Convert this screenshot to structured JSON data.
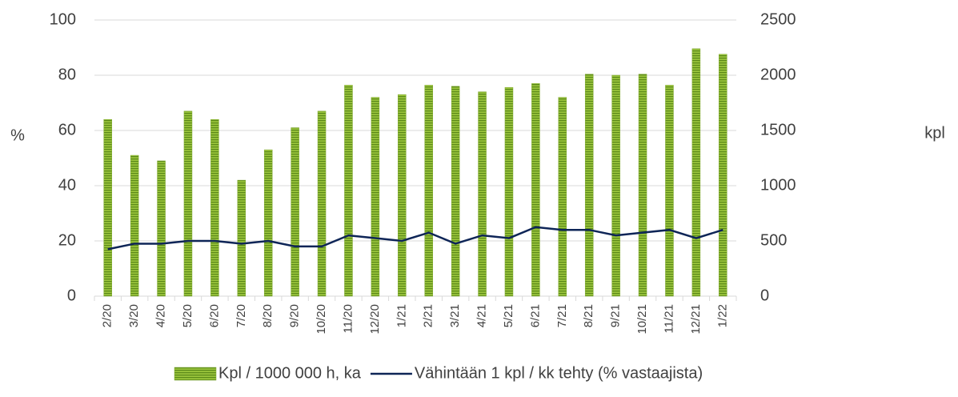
{
  "chart_data": {
    "type": "bar-line",
    "categories": [
      "2/20",
      "3/20",
      "4/20",
      "5/20",
      "6/20",
      "7/20",
      "8/20",
      "9/20",
      "10/20",
      "11/20",
      "12/20",
      "1/21",
      "2/21",
      "3/21",
      "4/21",
      "5/21",
      "6/21",
      "7/21",
      "8/21",
      "9/21",
      "10/21",
      "11/21",
      "12/21",
      "1/22"
    ],
    "series": [
      {
        "name": "Kpl / 1000 000 h, ka",
        "type": "bar",
        "axis": "y2",
        "color": "#7fa82e",
        "values": [
          1600,
          1275,
          1225,
          1675,
          1600,
          1050,
          1325,
          1525,
          1675,
          1910,
          1800,
          1825,
          1910,
          1900,
          1850,
          1890,
          1925,
          1800,
          2010,
          2000,
          2010,
          1910,
          2240,
          2190
        ]
      },
      {
        "name": "Vähintään 1 kpl / kk tehty (% vastaajista)",
        "type": "line",
        "color": "#0e2557",
        "values": [
          17,
          19,
          19,
          20,
          20,
          19,
          20,
          18,
          18,
          22,
          21,
          20,
          23,
          19,
          22,
          21,
          25,
          24,
          24,
          22,
          23,
          24,
          21,
          24
        ]
      }
    ],
    "ylabel": "%",
    "y2label": "kpl",
    "ylim": [
      0,
      100
    ],
    "yticks": [
      0,
      20,
      40,
      60,
      80,
      100
    ],
    "y2lim": [
      0,
      2500
    ],
    "y2ticks": [
      0,
      500,
      1000,
      1500,
      2000,
      2500
    ],
    "grid": true,
    "legend": "bottom"
  }
}
